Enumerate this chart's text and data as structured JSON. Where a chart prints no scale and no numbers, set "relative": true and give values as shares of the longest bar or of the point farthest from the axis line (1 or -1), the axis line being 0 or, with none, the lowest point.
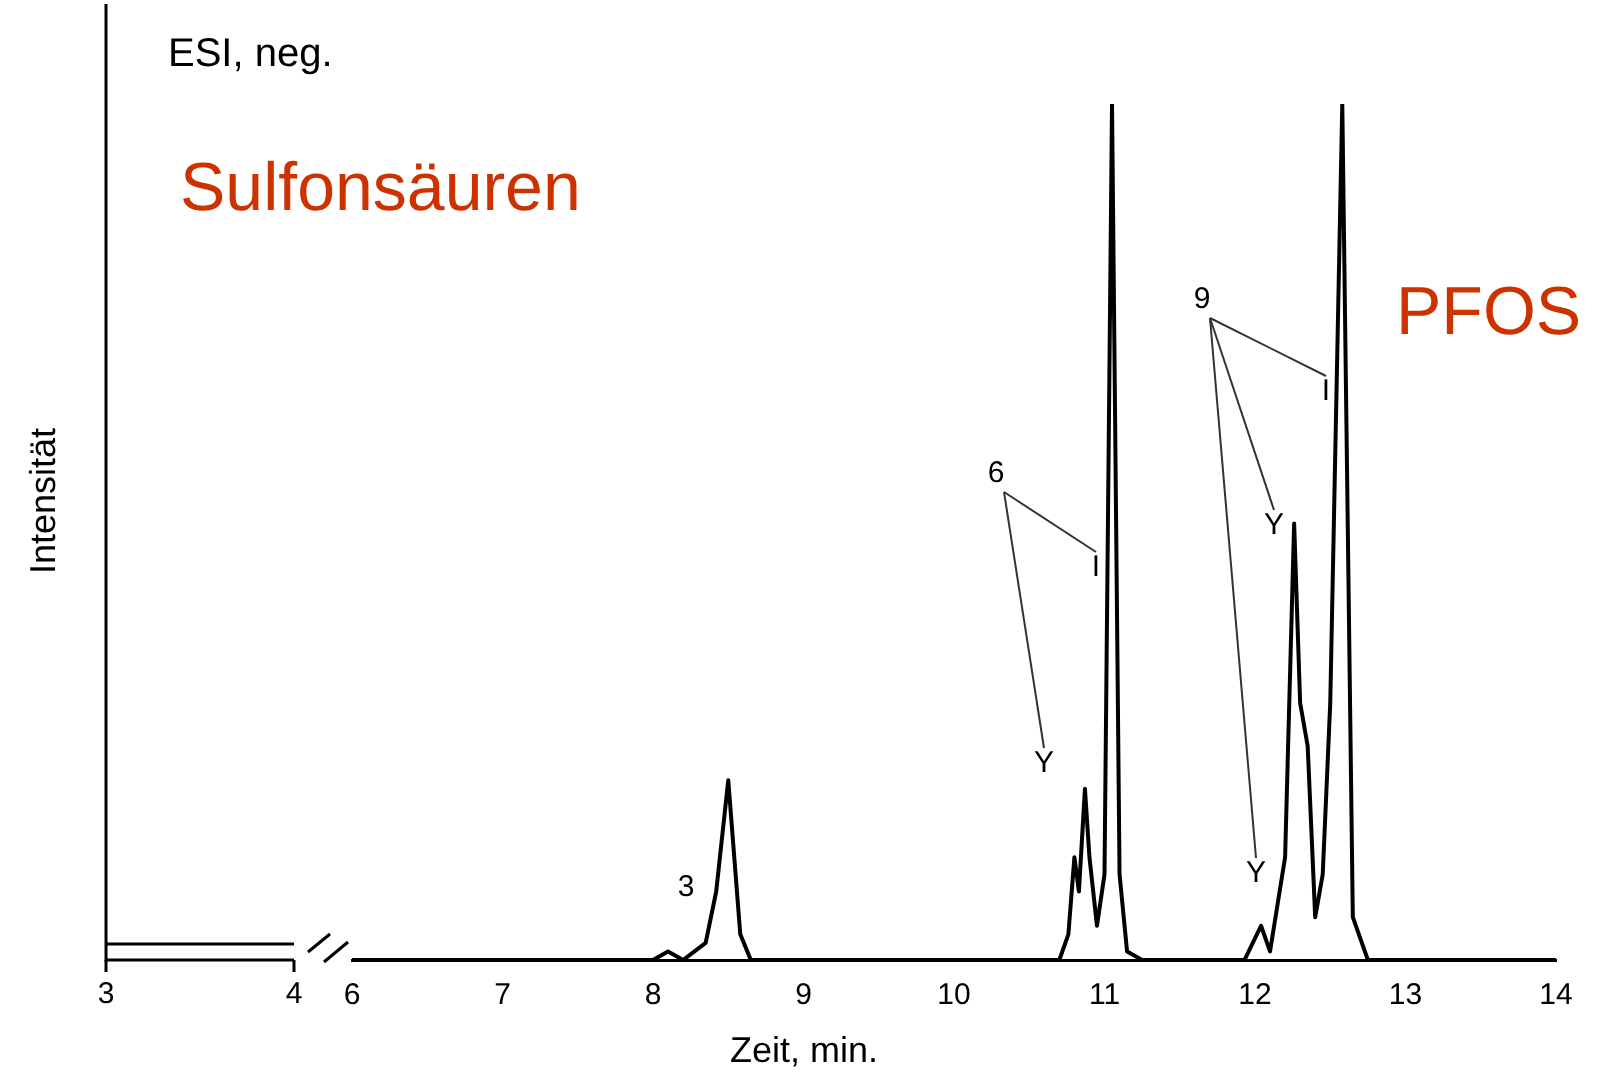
{
  "chart_data": [
    {
      "type": "other",
      "title": "ESI, neg.",
      "ylabel": "Intensität",
      "annotations": [
        "3",
        "4"
      ]
    },
    {
      "type": "line",
      "xlabel": "Zeit, min.",
      "relative": true,
      "color": "#000000",
      "x": [
        6,
        8.0,
        8.1,
        8.2,
        8.35,
        8.42,
        8.5,
        8.58,
        8.65,
        10.7,
        10.76,
        10.8,
        10.83,
        10.87,
        10.9,
        10.95,
        11.0,
        11.05,
        11.1,
        11.15,
        11.25,
        11.93,
        12.04,
        12.1,
        12.2,
        12.26,
        12.3,
        12.35,
        12.4,
        12.45,
        12.5,
        12.58,
        12.65,
        12.75,
        14
      ],
      "values": [
        0,
        0,
        0.01,
        0,
        0.02,
        0.08,
        0.21,
        0.03,
        0,
        0,
        0.03,
        0.12,
        0.08,
        0.2,
        0.12,
        0.04,
        0.1,
        1,
        0.1,
        0.01,
        0,
        0,
        0.04,
        0.01,
        0.12,
        0.51,
        0.3,
        0.25,
        0.05,
        0.1,
        0.3,
        1,
        0.05,
        0,
        0
      ],
      "xlim": [
        6,
        14
      ],
      "xticks": [
        6,
        7,
        8,
        9,
        10,
        11,
        12,
        13,
        14
      ],
      "annotations": [
        "Sulfonsäuren",
        "PFOS",
        "3",
        "6",
        "I",
        "Y",
        "9",
        "I",
        "Y",
        "Y"
      ]
    }
  ]
}
